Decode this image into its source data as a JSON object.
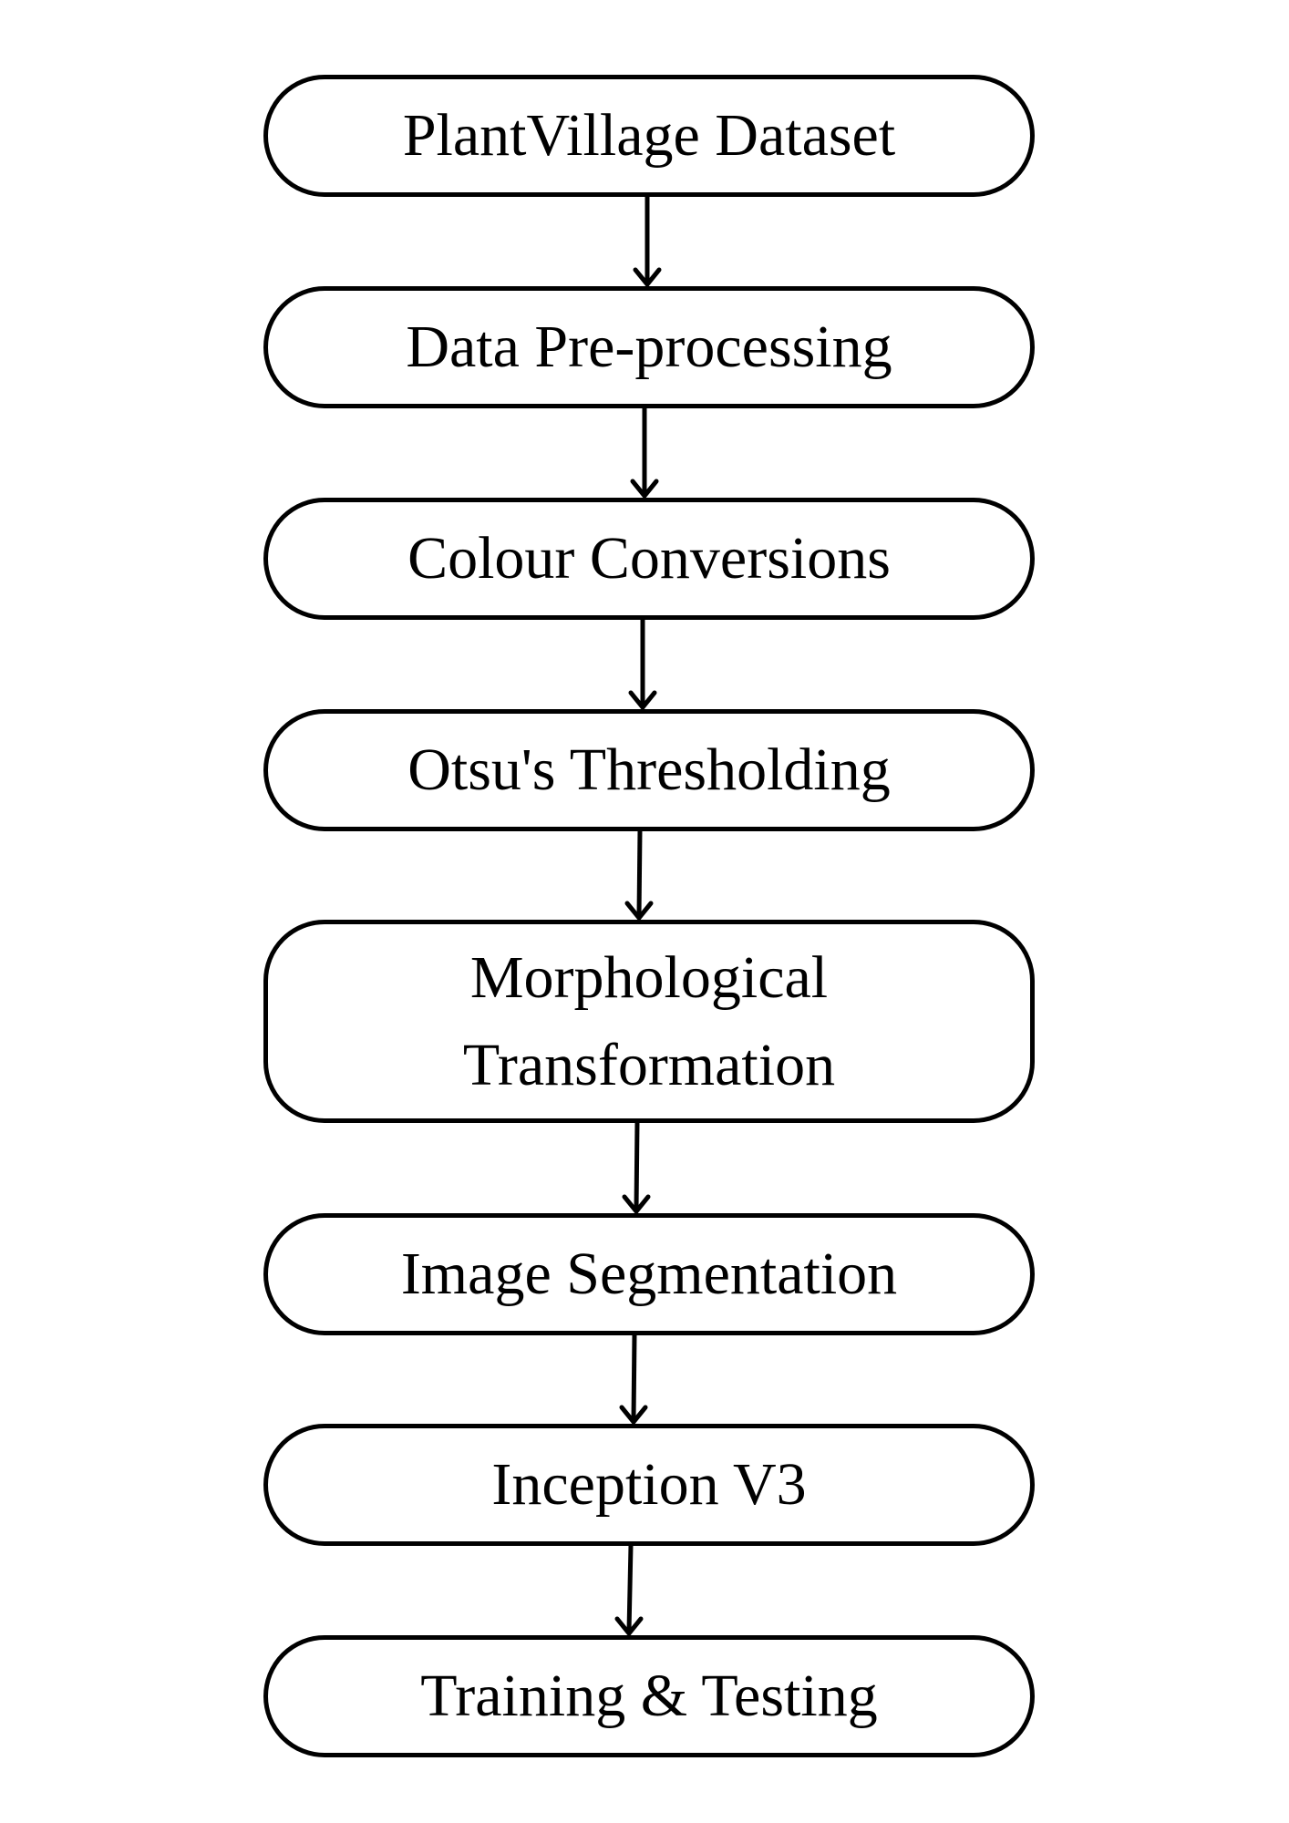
{
  "diagram": {
    "steps": [
      {
        "label": "PlantVillage Dataset"
      },
      {
        "label": "Data Pre-processing"
      },
      {
        "label": "Colour Conversions"
      },
      {
        "label": "Otsu's Thresholding"
      },
      {
        "label": "Morphological\nTransformation"
      },
      {
        "label": "Image Segmentation"
      },
      {
        "label": "Inception V3"
      },
      {
        "label": "Training & Testing"
      }
    ],
    "connections": [
      {
        "from": 0,
        "to": 1
      },
      {
        "from": 1,
        "to": 2
      },
      {
        "from": 2,
        "to": 3
      },
      {
        "from": 3,
        "to": 4
      },
      {
        "from": 4,
        "to": 5
      },
      {
        "from": 5,
        "to": 6
      },
      {
        "from": 6,
        "to": 7
      }
    ],
    "colors": {
      "stroke": "#000000",
      "fill": "#ffffff",
      "background": "#ffffff"
    }
  }
}
